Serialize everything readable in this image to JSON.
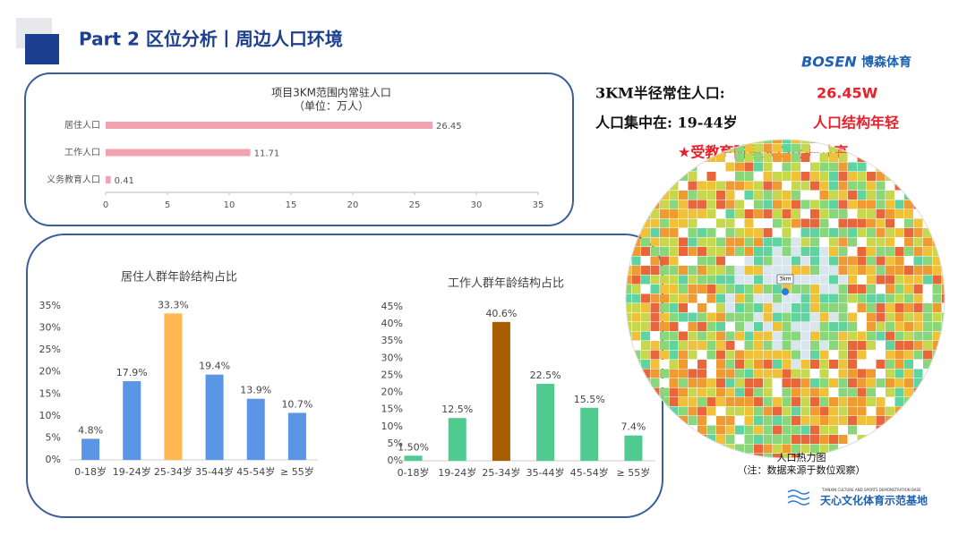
{
  "header": {
    "title": "Part 2 区位分析丨周边人口环境",
    "logo": "BOSEN",
    "logo_name": "博森体育"
  },
  "summary": {
    "line1_label": "3KM半径常住人口:",
    "line1_value": "26.45W",
    "line2_label": "人口集中在:  19-44岁",
    "line2_value": "人口结构年轻",
    "highlight": "★受教育阶段人口比率较高"
  },
  "heatmap": {
    "caption": "人口热力图",
    "note": "（注：数据来源于数位观察）",
    "pin": "3km"
  },
  "footer": {
    "name": "天心文化体育示范基地",
    "name_en": "TIANXIN CULTURE AND SPORTS DEMONSTRATION BASE"
  },
  "chart_data": [
    {
      "type": "hbar",
      "title": "项目3KM范围内常驻人口",
      "subtitle": "（单位：万人）",
      "categories": [
        "居住人口",
        "工作人口",
        "义务教育人口"
      ],
      "values": [
        26.45,
        11.71,
        0.41
      ],
      "color": "#f2a3b1",
      "xlim": [
        0,
        35
      ],
      "xticks": [
        0,
        5,
        10,
        15,
        20,
        25,
        30,
        35
      ]
    },
    {
      "type": "bar",
      "title": "居住人群年龄结构占比",
      "categories": [
        "0-18岁",
        "19-24岁",
        "25-34岁",
        "35-44岁",
        "45-54岁",
        "≥ 55岁"
      ],
      "values": [
        4.8,
        17.9,
        33.3,
        19.4,
        13.9,
        10.7
      ],
      "value_labels": [
        "4.8%",
        "17.9%",
        "33.3%",
        "19.4%",
        "13.9%",
        "10.7%"
      ],
      "colors": [
        "#5b95e6",
        "#5b95e6",
        "#ffb84f",
        "#5b95e6",
        "#5b95e6",
        "#5b95e6"
      ],
      "ylim": [
        0,
        35
      ],
      "yticks": [
        {
          "value": 0,
          "label": "0%"
        },
        {
          "value": 5,
          "label": "5%"
        },
        {
          "value": 10,
          "label": "10%"
        },
        {
          "value": 15,
          "label": "15%"
        },
        {
          "value": 20,
          "label": "20%"
        },
        {
          "value": 25,
          "label": "25%"
        },
        {
          "value": 30,
          "label": "30%"
        },
        {
          "value": 35,
          "label": "35%"
        }
      ]
    },
    {
      "type": "bar",
      "title": "工作人群年龄结构占比",
      "categories": [
        "0-18岁",
        "19-24岁",
        "25-34岁",
        "35-44岁",
        "45-54岁",
        "≥ 55岁"
      ],
      "values": [
        1.5,
        12.5,
        40.6,
        22.5,
        15.5,
        7.4
      ],
      "value_labels": [
        "1.50%",
        "12.5%",
        "40.6%",
        "22.5%",
        "15.5%",
        "7.4%"
      ],
      "colors": [
        "#4fcb90",
        "#4fcb90",
        "#a65e00",
        "#4fcb90",
        "#4fcb90",
        "#4fcb90"
      ],
      "ylim": [
        0,
        45
      ],
      "yticks": [
        {
          "value": 0,
          "label": "0%"
        },
        {
          "value": 5,
          "label": "5%"
        },
        {
          "value": 10,
          "label": "10%"
        },
        {
          "value": 15,
          "label": "15%"
        },
        {
          "value": 20,
          "label": "20%"
        },
        {
          "value": 25,
          "label": "25%"
        },
        {
          "value": 30,
          "label": "30%"
        },
        {
          "value": 35,
          "label": "35%"
        },
        {
          "value": 40,
          "label": "40%"
        },
        {
          "value": 45,
          "label": "45%"
        }
      ]
    }
  ]
}
